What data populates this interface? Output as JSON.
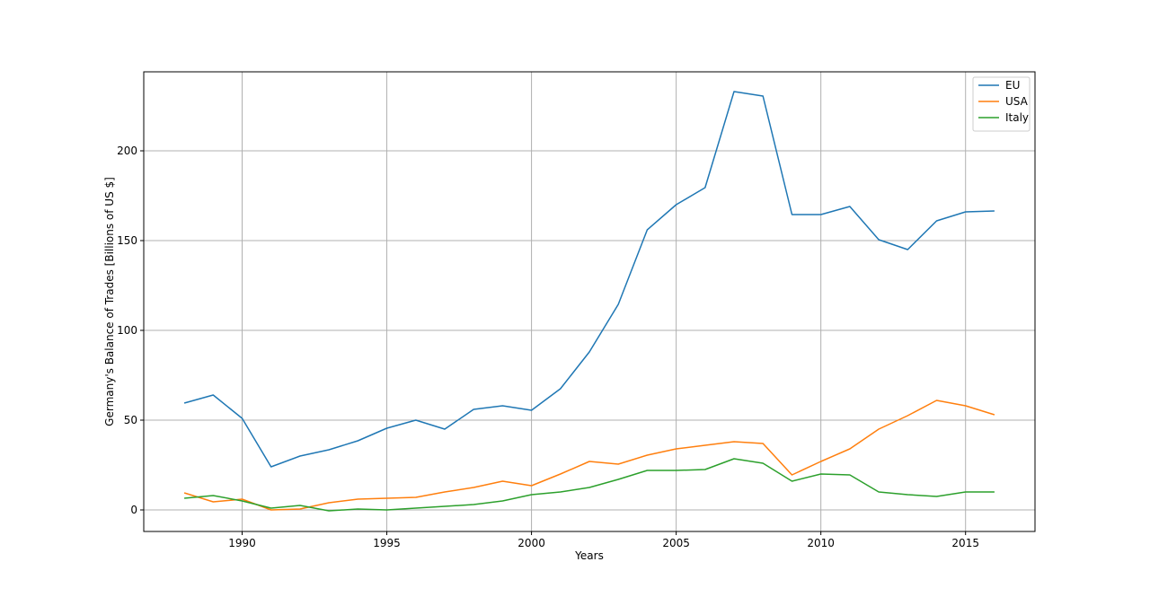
{
  "chart_data": {
    "type": "line",
    "title": "",
    "xlabel": "Years",
    "ylabel": "Germany's Balance of Trades [Billions of US $]",
    "xlim": [
      1986.6,
      2017.4
    ],
    "ylim": [
      -12,
      244
    ],
    "x_ticks": [
      1990,
      1995,
      2000,
      2005,
      2010,
      2015
    ],
    "y_ticks": [
      0,
      50,
      100,
      150,
      200
    ],
    "grid": true,
    "legend_position": "top-right",
    "x": [
      1988,
      1989,
      1990,
      1991,
      1992,
      1993,
      1994,
      1995,
      1996,
      1997,
      1998,
      1999,
      2000,
      2001,
      2002,
      2003,
      2004,
      2005,
      2006,
      2007,
      2008,
      2009,
      2010,
      2011,
      2012,
      2013,
      2014,
      2015,
      2016
    ],
    "series": [
      {
        "name": "EU",
        "color": "#1f77b4",
        "values": [
          59.5,
          64,
          51,
          24,
          30,
          33.5,
          38.5,
          45.5,
          50,
          45,
          56,
          58,
          55.5,
          67.5,
          88,
          114.5,
          156,
          170,
          179.5,
          233,
          230.5,
          164.5,
          164.5,
          169,
          150.5,
          145,
          161,
          166,
          166.5
        ]
      },
      {
        "name": "USA",
        "color": "#ff7f0e",
        "values": [
          9.5,
          4.5,
          6,
          0,
          0.5,
          4,
          6,
          6.5,
          7,
          10,
          12.5,
          16,
          13.5,
          20,
          27,
          25.5,
          30.5,
          34,
          36,
          38,
          37,
          19.5,
          27,
          34,
          45,
          52.5,
          61,
          58,
          53
        ]
      },
      {
        "name": "Italy",
        "color": "#2ca02c",
        "values": [
          6.5,
          8,
          5,
          1,
          2.5,
          -0.5,
          0.5,
          0,
          1,
          2,
          3,
          5,
          8.5,
          10,
          12.5,
          17,
          22,
          22,
          22.5,
          28.5,
          26,
          16,
          20,
          19.5,
          10,
          8.5,
          7.5,
          10,
          10
        ]
      }
    ]
  }
}
